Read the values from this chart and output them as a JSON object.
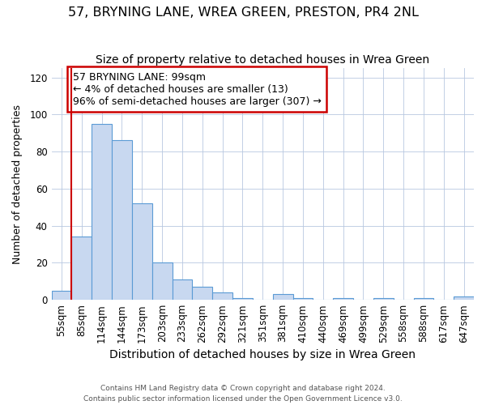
{
  "title": "57, BRYNING LANE, WREA GREEN, PRESTON, PR4 2NL",
  "subtitle": "Size of property relative to detached houses in Wrea Green",
  "xlabel": "Distribution of detached houses by size in Wrea Green",
  "ylabel": "Number of detached properties",
  "bar_labels": [
    "55sqm",
    "85sqm",
    "114sqm",
    "144sqm",
    "173sqm",
    "203sqm",
    "233sqm",
    "262sqm",
    "292sqm",
    "321sqm",
    "351sqm",
    "381sqm",
    "410sqm",
    "440sqm",
    "469sqm",
    "499sqm",
    "529sqm",
    "558sqm",
    "588sqm",
    "617sqm",
    "647sqm"
  ],
  "bar_values": [
    5,
    34,
    95,
    86,
    52,
    20,
    11,
    7,
    4,
    1,
    0,
    3,
    1,
    0,
    1,
    0,
    1,
    0,
    1,
    0,
    2
  ],
  "bar_color": "#c8d8f0",
  "bar_edge_color": "#5b9bd5",
  "grid_color": "#b8c8e0",
  "background_color": "#ffffff",
  "vline_x": 0.5,
  "vline_color": "#cc0000",
  "annotation_text": "57 BRYNING LANE: 99sqm\n← 4% of detached houses are smaller (13)\n96% of semi-detached houses are larger (307) →",
  "annotation_box_color": "#cc0000",
  "annotation_bg_color": "#ffffff",
  "ylim": [
    0,
    125
  ],
  "yticks": [
    0,
    20,
    40,
    60,
    80,
    100,
    120
  ],
  "title_fontsize": 11.5,
  "subtitle_fontsize": 10,
  "xlabel_fontsize": 10,
  "ylabel_fontsize": 9,
  "annot_fontsize": 9,
  "tick_fontsize": 8.5,
  "footer_text": "Contains HM Land Registry data © Crown copyright and database right 2024.\nContains public sector information licensed under the Open Government Licence v3.0."
}
